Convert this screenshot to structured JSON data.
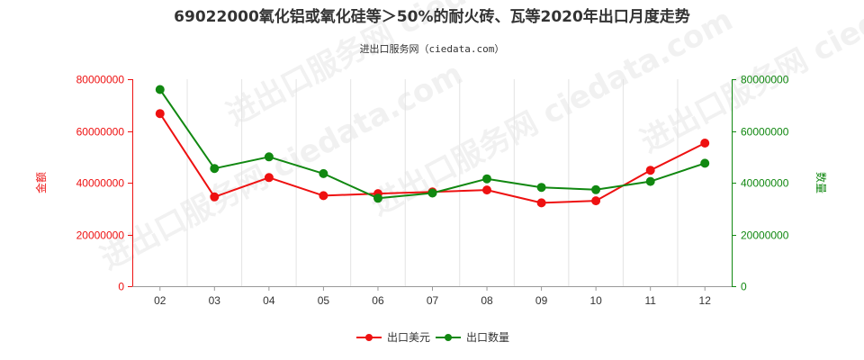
{
  "chart_data": {
    "type": "line",
    "title": "69022000氧化铝或氧化硅等＞50%的耐火砖、瓦等2020年出口月度走势",
    "subtitle": "进出口服务网（ciedata.com）",
    "watermark": "进出口服务网 ciedata.com",
    "categories": [
      "02",
      "03",
      "04",
      "05",
      "06",
      "07",
      "08",
      "09",
      "10",
      "11",
      "12"
    ],
    "y_left": {
      "label": "金额",
      "ylim": [
        0,
        80000000
      ],
      "ticks": [
        "0",
        "20000000",
        "40000000",
        "60000000",
        "80000000"
      ],
      "tick_values": [
        0,
        20000000,
        40000000,
        60000000,
        80000000
      ],
      "color": "#ee1111"
    },
    "y_right": {
      "label": "数量",
      "ylim": [
        0,
        80000000
      ],
      "ticks": [
        "0",
        "20000000",
        "40000000",
        "60000000",
        "80000000"
      ],
      "tick_values": [
        0,
        20000000,
        40000000,
        60000000,
        80000000
      ],
      "color": "#118811"
    },
    "series": [
      {
        "name": "出口美元",
        "axis": "left",
        "color": "#ee1111",
        "values": [
          66700000,
          34500000,
          42000000,
          35000000,
          35800000,
          36400000,
          37200000,
          32200000,
          33000000,
          44800000,
          55300000
        ]
      },
      {
        "name": "出口数量",
        "axis": "right",
        "color": "#118811",
        "values": [
          76000000,
          45500000,
          50000000,
          43500000,
          34000000,
          36000000,
          41500000,
          38200000,
          37300000,
          40500000,
          47500000
        ]
      }
    ],
    "grid": "vertical",
    "legend": "bottom-center"
  }
}
